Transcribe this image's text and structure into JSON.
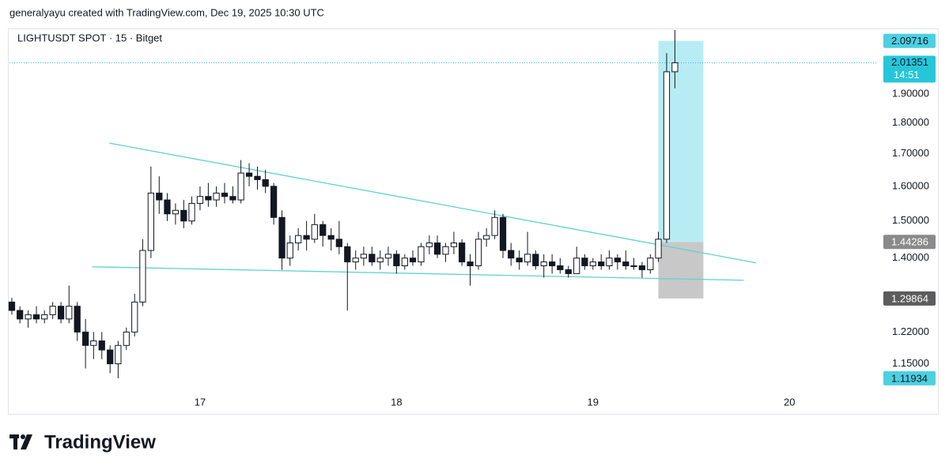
{
  "header": {
    "attribution": "generalyayu created with TradingView.com, Dec 19, 2025 10:30 UTC"
  },
  "chart_data": {
    "type": "candlestick",
    "title": "LIGHTUSDT SPOT · 15 · Bitget",
    "x": [
      16.042,
      16.083,
      16.125,
      16.167,
      16.208,
      16.25,
      16.292,
      16.333,
      16.375,
      16.417,
      16.458,
      16.5,
      16.542,
      16.583,
      16.625,
      16.667,
      16.708,
      16.75,
      16.792,
      16.833,
      16.875,
      16.917,
      16.958,
      17,
      17.042,
      17.083,
      17.125,
      17.167,
      17.208,
      17.25,
      17.292,
      17.333,
      17.375,
      17.417,
      17.458,
      17.5,
      17.542,
      17.583,
      17.625,
      17.667,
      17.708,
      17.75,
      17.792,
      17.833,
      17.875,
      17.917,
      17.958,
      18,
      18.042,
      18.083,
      18.125,
      18.167,
      18.208,
      18.25,
      18.292,
      18.333,
      18.375,
      18.417,
      18.458,
      18.5,
      18.542,
      18.583,
      18.625,
      18.667,
      18.708,
      18.75,
      18.792,
      18.833,
      18.875,
      18.917,
      18.958,
      19,
      19.042,
      19.083,
      19.125,
      19.167,
      19.208,
      19.25,
      19.292,
      19.333,
      19.375,
      19.417
    ],
    "open": [
      1.29,
      1.27,
      1.25,
      1.26,
      1.25,
      1.26,
      1.28,
      1.25,
      1.28,
      1.22,
      1.19,
      1.2,
      1.18,
      1.15,
      1.19,
      1.22,
      1.29,
      1.42,
      1.58,
      1.56,
      1.52,
      1.53,
      1.5,
      1.55,
      1.57,
      1.56,
      1.58,
      1.57,
      1.56,
      1.64,
      1.63,
      1.62,
      1.6,
      1.51,
      1.4,
      1.44,
      1.46,
      1.45,
      1.49,
      1.46,
      1.45,
      1.43,
      1.39,
      1.4,
      1.41,
      1.39,
      1.4,
      1.41,
      1.38,
      1.4,
      1.39,
      1.43,
      1.44,
      1.41,
      1.43,
      1.44,
      1.39,
      1.38,
      1.45,
      1.46,
      1.51,
      1.42,
      1.4,
      1.39,
      1.41,
      1.38,
      1.39,
      1.38,
      1.37,
      1.36,
      1.4,
      1.38,
      1.39,
      1.38,
      1.4,
      1.39,
      1.38,
      1.38,
      1.37,
      1.4,
      1.45,
      1.98
    ],
    "high": [
      1.3,
      1.28,
      1.27,
      1.28,
      1.27,
      1.29,
      1.29,
      1.33,
      1.29,
      1.25,
      1.22,
      1.22,
      1.19,
      1.2,
      1.23,
      1.31,
      1.45,
      1.66,
      1.63,
      1.58,
      1.55,
      1.56,
      1.57,
      1.6,
      1.61,
      1.6,
      1.61,
      1.6,
      1.68,
      1.67,
      1.66,
      1.65,
      1.61,
      1.53,
      1.46,
      1.48,
      1.5,
      1.52,
      1.5,
      1.48,
      1.5,
      1.44,
      1.42,
      1.43,
      1.43,
      1.42,
      1.43,
      1.42,
      1.41,
      1.42,
      1.44,
      1.46,
      1.46,
      1.44,
      1.47,
      1.45,
      1.41,
      1.47,
      1.48,
      1.53,
      1.52,
      1.44,
      1.42,
      1.47,
      1.42,
      1.41,
      1.41,
      1.4,
      1.38,
      1.43,
      1.41,
      1.4,
      1.41,
      1.42,
      1.41,
      1.42,
      1.4,
      1.39,
      1.41,
      1.47,
      2.05,
      2.14
    ],
    "low": [
      1.26,
      1.24,
      1.23,
      1.24,
      1.24,
      1.25,
      1.24,
      1.24,
      1.2,
      1.14,
      1.16,
      1.16,
      1.13,
      1.11934,
      1.18,
      1.21,
      1.28,
      1.4,
      1.52,
      1.5,
      1.49,
      1.48,
      1.49,
      1.53,
      1.54,
      1.54,
      1.55,
      1.55,
      1.55,
      1.6,
      1.59,
      1.58,
      1.49,
      1.37,
      1.38,
      1.42,
      1.42,
      1.44,
      1.43,
      1.42,
      1.41,
      1.27,
      1.37,
      1.38,
      1.38,
      1.37,
      1.38,
      1.36,
      1.37,
      1.38,
      1.38,
      1.41,
      1.4,
      1.39,
      1.41,
      1.38,
      1.33,
      1.37,
      1.43,
      1.45,
      1.4,
      1.38,
      1.37,
      1.38,
      1.37,
      1.35,
      1.36,
      1.36,
      1.35,
      1.36,
      1.37,
      1.37,
      1.37,
      1.37,
      1.37,
      1.37,
      1.37,
      1.35,
      1.36,
      1.39,
      1.44,
      1.92
    ],
    "close": [
      1.27,
      1.25,
      1.26,
      1.25,
      1.26,
      1.28,
      1.25,
      1.28,
      1.22,
      1.19,
      1.2,
      1.18,
      1.15,
      1.19,
      1.22,
      1.29,
      1.42,
      1.58,
      1.56,
      1.52,
      1.53,
      1.5,
      1.55,
      1.57,
      1.56,
      1.58,
      1.57,
      1.56,
      1.64,
      1.63,
      1.62,
      1.6,
      1.51,
      1.4,
      1.44,
      1.46,
      1.45,
      1.49,
      1.46,
      1.45,
      1.43,
      1.39,
      1.4,
      1.41,
      1.39,
      1.4,
      1.41,
      1.38,
      1.4,
      1.39,
      1.43,
      1.44,
      1.41,
      1.43,
      1.44,
      1.39,
      1.38,
      1.45,
      1.46,
      1.51,
      1.42,
      1.4,
      1.39,
      1.41,
      1.38,
      1.39,
      1.38,
      1.37,
      1.36,
      1.4,
      1.38,
      1.39,
      1.38,
      1.4,
      1.39,
      1.38,
      1.38,
      1.37,
      1.4,
      1.45,
      1.98,
      2.01351
    ],
    "up_color": "#ffffff",
    "down_color": "#131722",
    "outline_color": "#131722",
    "xlim": [
      16.03,
      20.45
    ],
    "xticks": [
      17,
      18,
      19,
      20
    ],
    "ylim": [
      1.09,
      2.14
    ],
    "log_scale": true,
    "grid": false,
    "yticks": [
      {
        "value": 1.15,
        "label": "1.15000"
      },
      {
        "value": 1.22,
        "label": "1.22000"
      },
      {
        "value": 1.4,
        "label": "1.40000"
      },
      {
        "value": 1.5,
        "label": "1.50000"
      },
      {
        "value": 1.6,
        "label": "1.60000"
      },
      {
        "value": 1.7,
        "label": "1.70000"
      },
      {
        "value": 1.8,
        "label": "1.80000"
      },
      {
        "value": 1.9,
        "label": "1.90000"
      }
    ],
    "trendlines": [
      {
        "x": [
          16.538,
          19.831
        ],
        "y": [
          1.734,
          1.3877
        ],
        "color": "#5fd3cc"
      },
      {
        "x": [
          16.45,
          19.767
        ],
        "y": [
          1.3775,
          1.3434
        ],
        "color": "#5fd3cc"
      }
    ],
    "position": {
      "x": [
        19.333,
        19.562
      ],
      "target": 2.09716,
      "entry": 1.44286,
      "stop": 1.29864,
      "profit_color": "#b8ecf4",
      "loss_color": "#c8c8c8",
      "target_color": "#4dd0e1",
      "entry_color": "#8a8a8a",
      "stop_color": "#5c5c5c"
    },
    "current": {
      "value": 2.01351,
      "countdown": "14:51",
      "color": "#26c6da"
    },
    "low_marker": {
      "value": 1.11934,
      "color": "#4dd0e1"
    }
  },
  "logo": "TradingView"
}
